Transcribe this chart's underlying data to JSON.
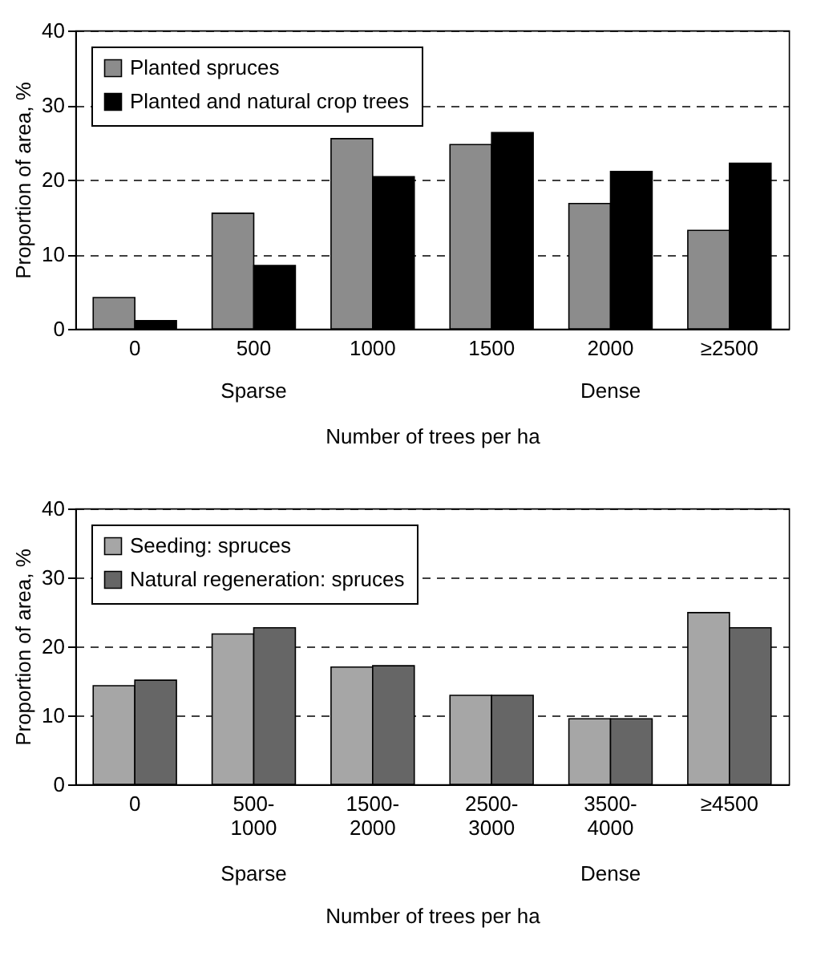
{
  "chart_data": [
    {
      "type": "bar",
      "categories": [
        "0",
        "500",
        "1000",
        "1500",
        "2000",
        "≥2500"
      ],
      "series": [
        {
          "name": "Planted spruces",
          "color": "#8c8c8c",
          "values": [
            4.2,
            15.5,
            25.5,
            24.7,
            16.8,
            13.2
          ]
        },
        {
          "name": "Planted and natural crop trees",
          "color": "#000000",
          "values": [
            1.1,
            8.5,
            20.4,
            26.3,
            21.1,
            22.2
          ]
        }
      ],
      "ylabel": "Proportion of area, %",
      "xlabel": "Number of trees per ha",
      "ylim": [
        0,
        40
      ],
      "yticks": [
        0,
        10,
        20,
        30,
        40
      ],
      "grid": "y",
      "legend": "top left",
      "annotations": [
        "Sparse",
        "Dense"
      ]
    },
    {
      "type": "bar",
      "categories": [
        "0",
        "500-1000",
        "1500-2000",
        "2500-3000",
        "3500-4000",
        "≥4500"
      ],
      "series": [
        {
          "name": "Seeding: spruces",
          "color": "#a6a6a6",
          "values": [
            14.3,
            21.8,
            17.0,
            12.9,
            9.5,
            24.9
          ]
        },
        {
          "name": "Natural regeneration: spruces",
          "color": "#666666",
          "values": [
            15.1,
            22.7,
            17.2,
            12.9,
            9.5,
            22.7
          ]
        }
      ],
      "ylabel": "Proportion of area, %",
      "xlabel": "Number of trees per ha",
      "ylim": [
        0,
        40
      ],
      "yticks": [
        0,
        10,
        20,
        30,
        40
      ],
      "grid": "y",
      "legend": "top left",
      "annotations": [
        "Sparse",
        "Dense"
      ]
    }
  ]
}
